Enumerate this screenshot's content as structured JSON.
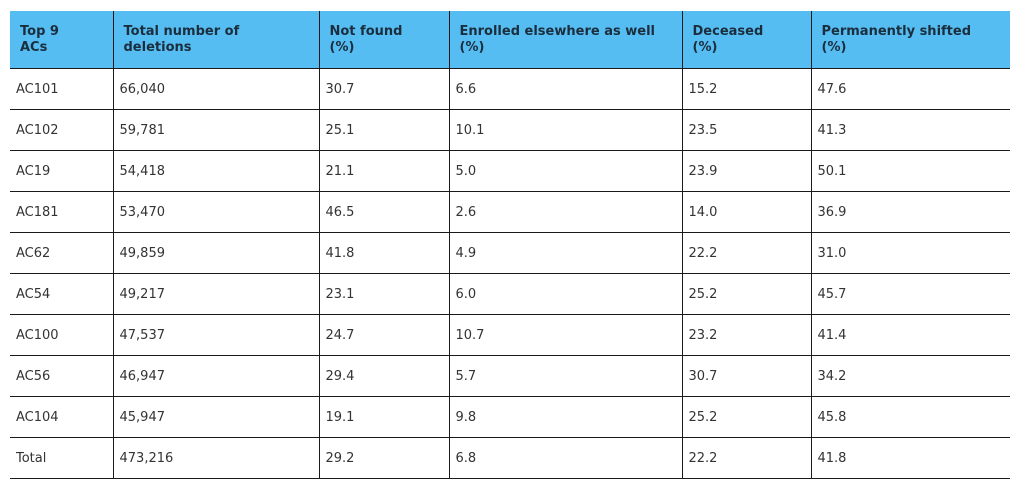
{
  "table": {
    "headers": [
      [
        "Top 9",
        "ACs"
      ],
      [
        "Total number of",
        "deletions"
      ],
      [
        "Not found",
        "(%)"
      ],
      [
        "Enrolled elsewhere as well",
        "(%)"
      ],
      [
        "Deceased",
        "(%)"
      ],
      [
        "Permanently shifted",
        "(%)"
      ]
    ],
    "rows": [
      [
        "AC101",
        "66,040",
        "30.7",
        "6.6",
        "15.2",
        "47.6"
      ],
      [
        "AC102",
        "59,781",
        "25.1",
        "10.1",
        "23.5",
        "41.3"
      ],
      [
        "AC19",
        "54,418",
        "21.1",
        "5.0",
        "23.9",
        "50.1"
      ],
      [
        "AC181",
        "53,470",
        "46.5",
        "2.6",
        "14.0",
        "36.9"
      ],
      [
        "AC62",
        "49,859",
        "41.8",
        "4.9",
        "22.2",
        "31.0"
      ],
      [
        "AC54",
        "49,217",
        "23.1",
        "6.0",
        "25.2",
        "45.7"
      ],
      [
        "AC100",
        "47,537",
        "24.7",
        "10.7",
        "23.2",
        "41.4"
      ],
      [
        "AC56",
        "46,947",
        "29.4",
        "5.7",
        "30.7",
        "34.2"
      ],
      [
        "AC104",
        "45,947",
        "19.1",
        "9.8",
        "25.2",
        "45.8"
      ],
      [
        "Total",
        "473,216",
        "29.2",
        "6.8",
        "22.2",
        "41.8"
      ]
    ]
  },
  "colors": {
    "header_background": "#56bdf2",
    "header_text": "#1b2e3d",
    "grid_lines": "#1a1a1a"
  }
}
